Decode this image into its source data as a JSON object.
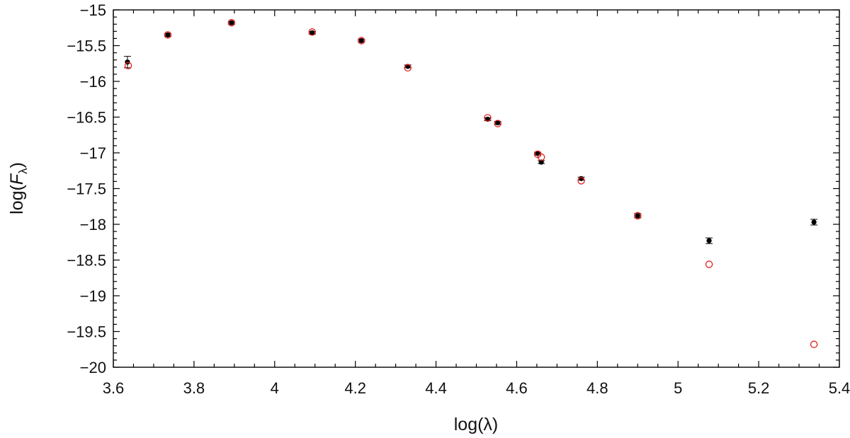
{
  "chart_data": {
    "type": "scatter",
    "title": "",
    "xlabel": "log(λ)",
    "ylabel_parts": {
      "prefix": "log(",
      "var": "F",
      "sub": "λ",
      "suffix": ")"
    },
    "xlim": [
      3.6,
      5.4
    ],
    "ylim": [
      -20,
      -15
    ],
    "x_ticks": [
      3.6,
      3.8,
      4.0,
      4.2,
      4.4,
      4.6,
      4.8,
      5.0,
      5.2,
      5.4
    ],
    "x_tick_labels": [
      "3.6",
      "3.8",
      "4",
      "4.2",
      "4.4",
      "4.6",
      "4.8",
      "5",
      "5.2",
      "5.4"
    ],
    "y_ticks": [
      -15,
      -15.5,
      -16,
      -16.5,
      -17,
      -17.5,
      -18,
      -18.5,
      -19,
      -19.5,
      -20
    ],
    "y_tick_labels": [
      "−15",
      "−15.5",
      "−16",
      "−16.5",
      "−17",
      "−17.5",
      "−18",
      "−18.5",
      "−19",
      "−19.5",
      "−20"
    ],
    "grid": false,
    "colors": {
      "observed": "#000000",
      "model": "#e0201b",
      "axis": "#000000"
    },
    "series": [
      {
        "marker": "filled-circle",
        "points": [
          {
            "x": 3.635,
            "y": -15.73,
            "err": 0.08
          },
          {
            "x": 3.735,
            "y": -15.35,
            "err": 0.02
          },
          {
            "x": 3.893,
            "y": -15.18,
            "err": 0.02
          },
          {
            "x": 4.093,
            "y": -15.32,
            "err": 0.02
          },
          {
            "x": 4.215,
            "y": -15.43,
            "err": 0.02
          },
          {
            "x": 4.33,
            "y": -15.79,
            "err": 0.02
          },
          {
            "x": 4.528,
            "y": -16.53,
            "err": 0.02
          },
          {
            "x": 4.553,
            "y": -16.58,
            "err": 0.02
          },
          {
            "x": 4.652,
            "y": -17.01,
            "err": 0.02
          },
          {
            "x": 4.661,
            "y": -17.13,
            "err": 0.02
          },
          {
            "x": 4.76,
            "y": -17.36,
            "err": 0.02
          },
          {
            "x": 4.9,
            "y": -17.88,
            "err": 0.03
          },
          {
            "x": 5.077,
            "y": -18.23,
            "err": 0.04
          },
          {
            "x": 5.337,
            "y": -17.97,
            "err": 0.04
          }
        ]
      },
      {
        "marker": "open-circle",
        "points": [
          {
            "x": 3.637,
            "y": -15.78
          },
          {
            "x": 3.735,
            "y": -15.35
          },
          {
            "x": 3.893,
            "y": -15.18
          },
          {
            "x": 4.093,
            "y": -15.31
          },
          {
            "x": 4.215,
            "y": -15.43
          },
          {
            "x": 4.33,
            "y": -15.81
          },
          {
            "x": 4.528,
            "y": -16.51
          },
          {
            "x": 4.553,
            "y": -16.59
          },
          {
            "x": 4.652,
            "y": -17.02
          },
          {
            "x": 4.661,
            "y": -17.06
          },
          {
            "x": 4.76,
            "y": -17.39
          },
          {
            "x": 4.9,
            "y": -17.88
          },
          {
            "x": 5.077,
            "y": -18.56
          },
          {
            "x": 5.337,
            "y": -19.68
          }
        ]
      }
    ]
  }
}
